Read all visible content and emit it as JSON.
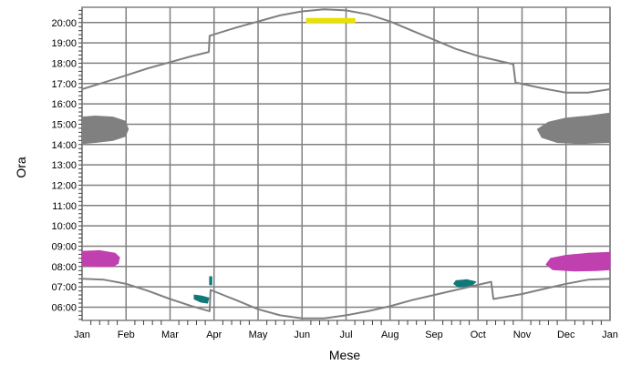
{
  "chart_data": {
    "type": "line",
    "title": "",
    "xlabel": "Mese",
    "ylabel": "Ora",
    "x_ticks": [
      "Jan",
      "Feb",
      "Mar",
      "Apr",
      "May",
      "Jun",
      "Jul",
      "Aug",
      "Sep",
      "Oct",
      "Nov",
      "Dec",
      "Jan"
    ],
    "y_ticks": [
      "06:00",
      "07:00",
      "08:00",
      "09:00",
      "10:00",
      "11:00",
      "12:00",
      "13:00",
      "14:00",
      "15:00",
      "16:00",
      "17:00",
      "18:00",
      "19:00",
      "20:00"
    ],
    "xlim": [
      0,
      12
    ],
    "ylim": [
      5.35,
      20.75
    ],
    "grid": true,
    "colors": {
      "grid": "#808080",
      "line": "#808080",
      "gray_region": "#808080",
      "magenta_region": "#c040b0",
      "teal_region": "#107878",
      "yellow_region": "#e8e000"
    },
    "series": [
      {
        "kind": "sunset",
        "points": [
          [
            0,
            16.72
          ],
          [
            0.5,
            17.05
          ],
          [
            1,
            17.4
          ],
          [
            1.5,
            17.75
          ],
          [
            2,
            18.05
          ],
          [
            2.5,
            18.35
          ],
          [
            2.88,
            18.55
          ],
          [
            2.9,
            19.35
          ],
          [
            3.5,
            19.75
          ],
          [
            4,
            20.05
          ],
          [
            4.5,
            20.35
          ],
          [
            5,
            20.55
          ],
          [
            5.5,
            20.65
          ],
          [
            6,
            20.6
          ],
          [
            6.5,
            20.4
          ],
          [
            7,
            20.05
          ],
          [
            7.5,
            19.6
          ],
          [
            8,
            19.15
          ],
          [
            8.5,
            18.7
          ],
          [
            9,
            18.35
          ],
          [
            9.8,
            17.95
          ],
          [
            9.85,
            17.05
          ],
          [
            10.5,
            16.75
          ],
          [
            11,
            16.55
          ],
          [
            11.5,
            16.55
          ],
          [
            12,
            16.72
          ]
        ]
      },
      {
        "kind": "sunrise",
        "points": [
          [
            0,
            7.4
          ],
          [
            0.5,
            7.35
          ],
          [
            1,
            7.15
          ],
          [
            1.5,
            6.8
          ],
          [
            2,
            6.4
          ],
          [
            2.5,
            6.05
          ],
          [
            2.9,
            5.8
          ],
          [
            2.92,
            6.85
          ],
          [
            3.5,
            6.35
          ],
          [
            4,
            5.9
          ],
          [
            4.5,
            5.6
          ],
          [
            5,
            5.45
          ],
          [
            5.5,
            5.45
          ],
          [
            6,
            5.6
          ],
          [
            6.5,
            5.8
          ],
          [
            7,
            6.05
          ],
          [
            7.5,
            6.35
          ],
          [
            8,
            6.6
          ],
          [
            8.5,
            6.85
          ],
          [
            9,
            7.1
          ],
          [
            9.3,
            7.25
          ],
          [
            9.35,
            6.4
          ],
          [
            10,
            6.65
          ],
          [
            10.5,
            6.9
          ],
          [
            11,
            7.15
          ],
          [
            11.5,
            7.35
          ],
          [
            12,
            7.4
          ]
        ]
      }
    ],
    "regions": [
      {
        "kind": "gray_region",
        "points": [
          [
            0,
            14.05
          ],
          [
            0.3,
            14.1
          ],
          [
            0.7,
            14.2
          ],
          [
            0.98,
            14.4
          ],
          [
            1.05,
            14.75
          ],
          [
            0.98,
            15.15
          ],
          [
            0.7,
            15.35
          ],
          [
            0.3,
            15.4
          ],
          [
            0,
            15.35
          ]
        ]
      },
      {
        "kind": "gray_region",
        "points": [
          [
            12,
            15.55
          ],
          [
            11.5,
            15.4
          ],
          [
            11,
            15.3
          ],
          [
            10.6,
            15.1
          ],
          [
            10.35,
            14.75
          ],
          [
            10.45,
            14.35
          ],
          [
            10.8,
            14.1
          ],
          [
            11.3,
            14.05
          ],
          [
            12,
            14.1
          ]
        ]
      },
      {
        "kind": "magenta_region",
        "points": [
          [
            0,
            8.05
          ],
          [
            0.3,
            8.0
          ],
          [
            0.7,
            8.0
          ],
          [
            0.82,
            8.15
          ],
          [
            0.85,
            8.45
          ],
          [
            0.75,
            8.65
          ],
          [
            0.4,
            8.78
          ],
          [
            0,
            8.75
          ]
        ]
      },
      {
        "kind": "magenta_region",
        "points": [
          [
            12,
            8.7
          ],
          [
            11.5,
            8.65
          ],
          [
            11,
            8.55
          ],
          [
            10.65,
            8.4
          ],
          [
            10.55,
            8.1
          ],
          [
            10.7,
            7.85
          ],
          [
            11.2,
            7.78
          ],
          [
            11.7,
            7.8
          ],
          [
            12,
            7.85
          ]
        ]
      },
      {
        "kind": "teal_region",
        "points": [
          [
            2.55,
            6.6
          ],
          [
            2.72,
            6.55
          ],
          [
            2.88,
            6.45
          ],
          [
            2.85,
            6.2
          ],
          [
            2.7,
            6.25
          ],
          [
            2.55,
            6.4
          ]
        ]
      },
      {
        "kind": "teal_region",
        "points": [
          [
            2.9,
            7.5
          ],
          [
            2.95,
            7.5
          ],
          [
            2.95,
            7.1
          ],
          [
            2.9,
            7.1
          ]
        ]
      },
      {
        "kind": "teal_region",
        "points": [
          [
            8.5,
            7.3
          ],
          [
            8.75,
            7.35
          ],
          [
            8.95,
            7.25
          ],
          [
            8.85,
            7.05
          ],
          [
            8.55,
            7.0
          ],
          [
            8.45,
            7.15
          ]
        ]
      },
      {
        "kind": "yellow_region",
        "points": [
          [
            5.1,
            20.0
          ],
          [
            6.2,
            20.0
          ],
          [
            6.2,
            20.2
          ],
          [
            5.1,
            20.2
          ]
        ]
      }
    ]
  }
}
